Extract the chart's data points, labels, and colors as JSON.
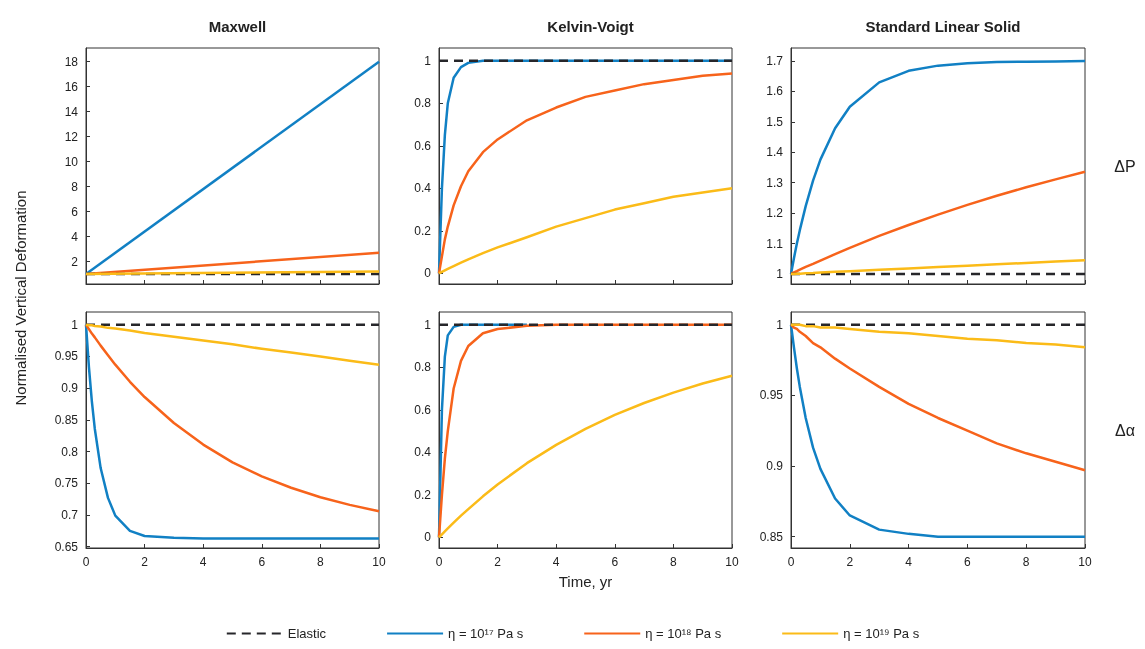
{
  "chart_data": [
    {
      "type": "line",
      "title": "Maxwell",
      "ylabel": "Normalised Vertical Deformation",
      "marker": "none",
      "tick_labels": "y",
      "xlim": [
        0,
        10
      ],
      "xticks": [
        0,
        2,
        4,
        6,
        8,
        10
      ],
      "ylim": [
        0.2,
        19.1
      ],
      "yticks": [
        2,
        4,
        6,
        8,
        10,
        12,
        14,
        16,
        18
      ],
      "x": [
        0,
        10
      ],
      "series": [
        {
          "color": "#26262a",
          "line_style": "dashed",
          "values": [
            1,
            1
          ]
        },
        {
          "color": "#1180c4",
          "values": [
            1,
            18
          ]
        },
        {
          "color": "#f7631b",
          "values": [
            1,
            2.7
          ]
        },
        {
          "color": "#fbbb18",
          "values": [
            1,
            1.2
          ]
        }
      ]
    },
    {
      "type": "line",
      "title": "Kelvin-Voigt",
      "marker": "none",
      "tick_labels": "y",
      "xlim": [
        0,
        10
      ],
      "xticks": [
        0,
        2,
        4,
        6,
        8,
        10
      ],
      "ylim": [
        -0.05,
        1.06
      ],
      "yticks": [
        0,
        0.2,
        0.4,
        0.6,
        0.8,
        1
      ],
      "x": [
        0,
        0.1,
        0.2,
        0.3,
        0.5,
        0.75,
        1,
        1.5,
        2,
        3,
        4,
        5,
        6,
        7,
        8,
        9,
        10
      ],
      "series": [
        {
          "color": "#26262a",
          "line_style": "dashed",
          "values": [
            1,
            1,
            1,
            1,
            1,
            1,
            1,
            1,
            1,
            1,
            1,
            1,
            1,
            1,
            1,
            1,
            1
          ]
        },
        {
          "color": "#1180c4",
          "values": [
            0,
            0.4,
            0.65,
            0.8,
            0.92,
            0.97,
            0.99,
            1,
            1,
            1,
            1,
            1,
            1,
            1,
            1,
            1,
            1
          ]
        },
        {
          "color": "#f7631b",
          "values": [
            0,
            0.08,
            0.16,
            0.22,
            0.32,
            0.41,
            0.48,
            0.57,
            0.63,
            0.72,
            0.78,
            0.83,
            0.86,
            0.89,
            0.91,
            0.93,
            0.94
          ]
        },
        {
          "color": "#fbbb18",
          "values": [
            0,
            0.007,
            0.014,
            0.021,
            0.034,
            0.05,
            0.066,
            0.095,
            0.122,
            0.17,
            0.22,
            0.26,
            0.3,
            0.33,
            0.36,
            0.38,
            0.4
          ]
        }
      ]
    },
    {
      "type": "line",
      "title": "Standard Linear Solid",
      "y2label": "ΔP",
      "marker": "none",
      "tick_labels": "y",
      "xlim": [
        0,
        10
      ],
      "xticks": [
        0,
        2,
        4,
        6,
        8,
        10
      ],
      "ylim": [
        0.967,
        1.743
      ],
      "yticks": [
        1,
        1.1,
        1.2,
        1.3,
        1.4,
        1.5,
        1.6,
        1.7
      ],
      "x": [
        0,
        0.1,
        0.2,
        0.3,
        0.5,
        0.75,
        1,
        1.5,
        2,
        3,
        4,
        5,
        6,
        7,
        8,
        9,
        10
      ],
      "series": [
        {
          "color": "#26262a",
          "line_style": "dashed",
          "values": [
            1,
            1,
            1,
            1,
            1,
            1,
            1,
            1,
            1,
            1,
            1,
            1,
            1,
            1,
            1,
            1,
            1
          ]
        },
        {
          "color": "#1180c4",
          "values": [
            1,
            1.052,
            1.1,
            1.144,
            1.223,
            1.307,
            1.376,
            1.479,
            1.55,
            1.63,
            1.668,
            1.685,
            1.693,
            1.697,
            1.698,
            1.699,
            1.7
          ]
        },
        {
          "color": "#f7631b",
          "values": [
            1,
            1.005,
            1.009,
            1.014,
            1.023,
            1.033,
            1.044,
            1.065,
            1.086,
            1.125,
            1.161,
            1.195,
            1.227,
            1.257,
            1.285,
            1.311,
            1.336
          ]
        },
        {
          "color": "#fbbb18",
          "values": [
            1,
            1,
            1.001,
            1.001,
            1.002,
            1.003,
            1.005,
            1.007,
            1.009,
            1.014,
            1.018,
            1.023,
            1.027,
            1.032,
            1.036,
            1.041,
            1.045
          ]
        }
      ]
    },
    {
      "type": "line",
      "marker": "none",
      "xlim": [
        0,
        10
      ],
      "xticks": [
        0,
        2,
        4,
        6,
        8,
        10
      ],
      "ylim": [
        0.648,
        1.02
      ],
      "yticks": [
        0.65,
        0.7,
        0.75,
        0.8,
        0.85,
        0.9,
        0.95,
        1
      ],
      "x": [
        0,
        0.1,
        0.2,
        0.3,
        0.5,
        0.75,
        1,
        1.5,
        2,
        3,
        4,
        5,
        6,
        7,
        8,
        9,
        10
      ],
      "series": [
        {
          "color": "#26262a",
          "line_style": "dashed",
          "values": [
            1,
            1,
            1,
            1,
            1,
            1,
            1,
            1,
            1,
            1,
            1,
            1,
            1,
            1,
            1,
            1,
            1
          ]
        },
        {
          "color": "#1180c4",
          "values": [
            1,
            0.933,
            0.879,
            0.836,
            0.774,
            0.727,
            0.699,
            0.675,
            0.667,
            0.664,
            0.663,
            0.663,
            0.663,
            0.663,
            0.663,
            0.663,
            0.663
          ]
        },
        {
          "color": "#f7631b",
          "values": [
            1,
            0.993,
            0.986,
            0.98,
            0.967,
            0.952,
            0.937,
            0.91,
            0.886,
            0.845,
            0.811,
            0.783,
            0.761,
            0.743,
            0.728,
            0.716,
            0.706
          ]
        },
        {
          "color": "#fbbb18",
          "values": [
            1,
            0.999,
            0.999,
            0.998,
            0.997,
            0.995,
            0.994,
            0.991,
            0.987,
            0.981,
            0.975,
            0.969,
            0.962,
            0.956,
            0.95,
            0.943,
            0.937
          ]
        }
      ]
    },
    {
      "type": "line",
      "xlabel": "Time, yr",
      "legend": "bottom",
      "marker": "none",
      "xlim": [
        0,
        10
      ],
      "xticks": [
        0,
        2,
        4,
        6,
        8,
        10
      ],
      "ylim": [
        -0.05,
        1.06
      ],
      "yticks": [
        0,
        0.2,
        0.4,
        0.6,
        0.8,
        1
      ],
      "x": [
        0,
        0.1,
        0.2,
        0.3,
        0.5,
        0.75,
        1,
        1.5,
        2,
        3,
        4,
        5,
        6,
        7,
        8,
        9,
        10
      ],
      "series": [
        {
          "name": "Elastic",
          "color": "#26262a",
          "line_style": "dashed",
          "values": [
            1,
            1,
            1,
            1,
            1,
            1,
            1,
            1,
            1,
            1,
            1,
            1,
            1,
            1,
            1,
            1,
            1
          ]
        },
        {
          "name": "η = 10¹⁷ Pa s",
          "color": "#1180c4",
          "values": [
            0,
            0.6,
            0.85,
            0.95,
            0.99,
            1,
            1,
            1,
            1,
            1,
            null,
            null,
            null,
            null,
            null,
            null,
            null
          ]
        },
        {
          "name": "η = 10¹⁸ Pa s",
          "color": "#f7631b",
          "values": [
            0,
            0.2,
            0.37,
            0.5,
            0.7,
            0.83,
            0.9,
            0.96,
            0.98,
            0.995,
            1,
            1,
            1,
            1,
            1,
            1,
            1
          ]
        },
        {
          "name": "η = 10¹⁹ Pa s",
          "color": "#fbbb18",
          "values": [
            0,
            0.014,
            0.028,
            0.042,
            0.069,
            0.102,
            0.133,
            0.193,
            0.249,
            0.349,
            0.435,
            0.51,
            0.576,
            0.632,
            0.681,
            0.724,
            0.76
          ]
        }
      ]
    },
    {
      "type": "line",
      "y2label": "Δα",
      "marker": "none",
      "xlim": [
        0,
        10
      ],
      "xticks": [
        0,
        2,
        4,
        6,
        8,
        10
      ],
      "ylim": [
        0.842,
        1.009
      ],
      "yticks": [
        0.85,
        0.9,
        0.95,
        1
      ],
      "x": [
        0,
        0.1,
        0.2,
        0.3,
        0.5,
        0.75,
        1,
        1.5,
        2,
        3,
        4,
        5,
        6,
        7,
        8,
        9,
        10
      ],
      "series": [
        {
          "color": "#26262a",
          "line_style": "dashed",
          "values": [
            1,
            1,
            1,
            1,
            1,
            1,
            1,
            1,
            1,
            1,
            1,
            1,
            1,
            1,
            1,
            1,
            1
          ]
        },
        {
          "color": "#1180c4",
          "values": [
            1,
            0.984,
            0.969,
            0.956,
            0.934,
            0.913,
            0.898,
            0.877,
            0.865,
            0.855,
            0.852,
            0.85,
            0.85,
            0.85,
            0.85,
            0.85,
            0.85
          ]
        },
        {
          "color": "#f7631b",
          "values": [
            1,
            0.998,
            0.997,
            0.995,
            0.992,
            0.987,
            0.984,
            0.976,
            0.969,
            0.956,
            0.944,
            0.934,
            0.925,
            0.916,
            0.909,
            0.903,
            0.897
          ]
        },
        {
          "color": "#fbbb18",
          "values": [
            1,
            1,
            1,
            1,
            0.999,
            0.999,
            0.998,
            0.998,
            0.997,
            0.995,
            0.994,
            0.992,
            0.99,
            0.989,
            0.987,
            0.986,
            0.984
          ]
        }
      ]
    }
  ]
}
